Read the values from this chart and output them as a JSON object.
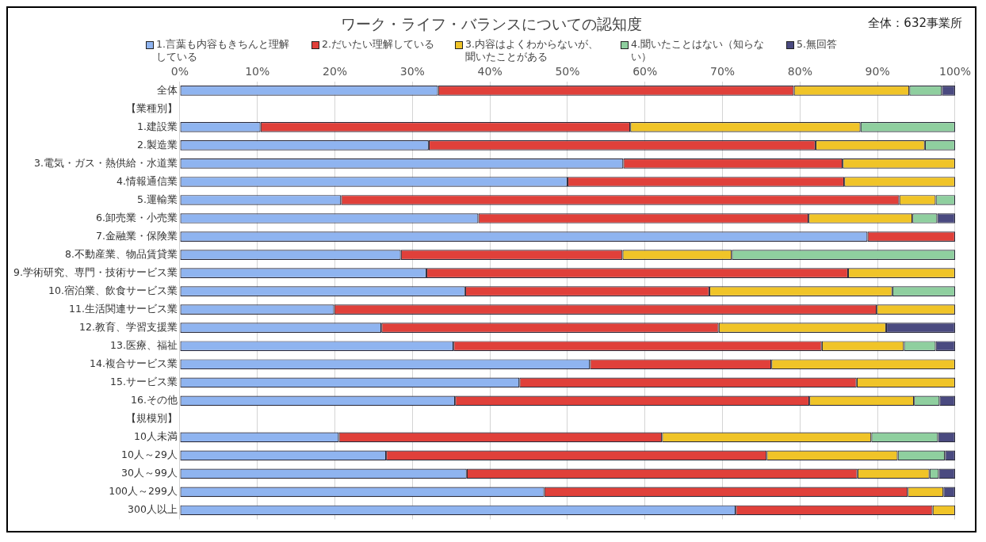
{
  "chart_data": {
    "type": "bar",
    "orientation": "horizontal",
    "stacked": true,
    "title": "ワーク・ライフ・バランスについての認知度",
    "annotations": [
      "全体：632事業所"
    ],
    "categories": [
      "全体",
      "【業種別】",
      "1.建設業",
      "2.製造業",
      "3.電気・ガス・熱供給・水道業",
      "4.情報通信業",
      "5.運輸業",
      "6.卸売業・小売業",
      "7.金融業・保険業",
      "8.不動産業、物品賃貸業",
      "9.学術研究、専門・技術サービス業",
      "10.宿泊業、飲食サービス業",
      "11.生活関連サービス業",
      "12.教育、学習支援業",
      "13.医療、福祉",
      "14.複合サービス業",
      "15.サービス業",
      "16.その他",
      "【規模別】",
      "10人未満",
      "10人～29人",
      "30人～99人",
      "100人～299人",
      "300人以上"
    ],
    "series": [
      {
        "name": "1.言葉も内容もきちんと理解している",
        "color": "#8fb4f0",
        "values": [
          33.3,
          null,
          10.4,
          32.1,
          57.2,
          50.0,
          20.8,
          38.5,
          88.7,
          28.5,
          31.8,
          36.8,
          19.9,
          26.0,
          35.3,
          52.9,
          43.8,
          35.5,
          null,
          20.5,
          26.6,
          37.0,
          47.0,
          71.7
        ]
      },
      {
        "name": "2.だいたい理解している",
        "color": "#e0403a",
        "values": [
          45.9,
          null,
          47.7,
          49.9,
          28.3,
          35.7,
          72.0,
          42.6,
          11.3,
          28.6,
          54.4,
          31.5,
          70.0,
          43.5,
          47.5,
          23.4,
          43.5,
          45.7,
          null,
          41.7,
          49.1,
          50.4,
          46.9,
          25.4
        ]
      },
      {
        "name": "3.内容はよくわからないが、聞いたことがある",
        "color": "#f0c428",
        "values": [
          14.9,
          null,
          29.7,
          14.1,
          14.5,
          14.3,
          4.7,
          13.4,
          null,
          14.1,
          13.8,
          23.6,
          10.1,
          21.6,
          10.6,
          23.7,
          12.7,
          13.5,
          null,
          27.0,
          16.9,
          9.3,
          4.6,
          2.9
        ]
      },
      {
        "name": "4.聞いたことはない（知らない）",
        "color": "#8fcf9f",
        "values": [
          4.2,
          null,
          12.2,
          3.9,
          null,
          null,
          2.5,
          3.2,
          null,
          28.8,
          null,
          8.1,
          null,
          null,
          4.1,
          null,
          null,
          3.3,
          null,
          8.6,
          6.1,
          1.2,
          null,
          null
        ]
      },
      {
        "name": "5.無回答",
        "color": "#4a4a80",
        "values": [
          1.7,
          null,
          null,
          null,
          null,
          null,
          null,
          2.3,
          null,
          null,
          null,
          null,
          null,
          8.9,
          2.5,
          null,
          null,
          2.0,
          null,
          2.2,
          1.3,
          2.1,
          1.5,
          null
        ]
      }
    ],
    "xlim": [
      0,
      100
    ],
    "xticks": [
      {
        "value": 0,
        "label": "0%"
      },
      {
        "value": 10,
        "label": "10%"
      },
      {
        "value": 20,
        "label": "20%"
      },
      {
        "value": 30,
        "label": "30%"
      },
      {
        "value": 40,
        "label": "40%"
      },
      {
        "value": 50,
        "label": "50%"
      },
      {
        "value": 60,
        "label": "60%"
      },
      {
        "value": 70,
        "label": "70%"
      },
      {
        "value": 80,
        "label": "80%"
      },
      {
        "value": 90,
        "label": "90%"
      },
      {
        "value": 100,
        "label": "100%"
      }
    ],
    "grid": "x",
    "legend": "top"
  }
}
